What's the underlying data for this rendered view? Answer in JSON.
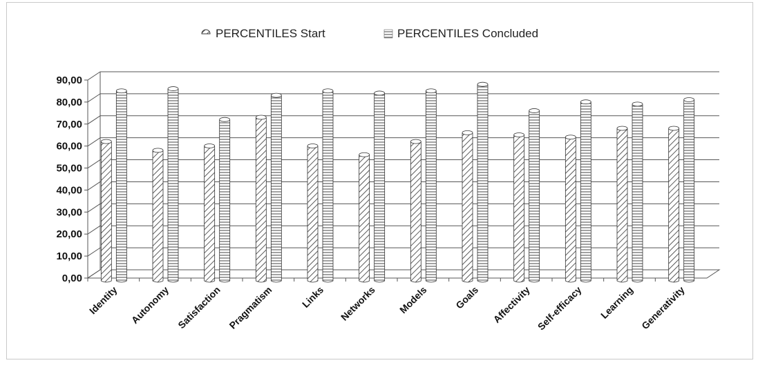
{
  "chart_data": {
    "type": "bar",
    "categories": [
      "Identity",
      "Autonomy",
      "Satisfaction",
      "Pragmatism",
      "Links",
      "Networks",
      "Models",
      "Goals",
      "Affectivity",
      "Self-efficacy",
      "Learning",
      "Generativity"
    ],
    "series": [
      {
        "name": "PERCENTILES Start",
        "values": [
          63,
          59,
          61,
          74,
          61,
          57,
          63,
          67,
          66,
          65,
          69,
          69
        ]
      },
      {
        "name": "PERCENTILES Concluded",
        "values": [
          86,
          87,
          73,
          84,
          86,
          85,
          86,
          89,
          77,
          81,
          80,
          82
        ]
      }
    ],
    "y_tick_labels": [
      "0,00",
      "10,00",
      "20,00",
      "30,00",
      "40,00",
      "50,00",
      "60,00",
      "70,00",
      "80,00",
      "90,00"
    ],
    "ylim": [
      0,
      90
    ],
    "grid": true,
    "three_d": true,
    "legend_position": "top",
    "colors": {
      "bar_fill": "#ffffff",
      "bar_stroke": "#333333",
      "grid": "#555555",
      "frame": "#c9c9c9"
    }
  }
}
